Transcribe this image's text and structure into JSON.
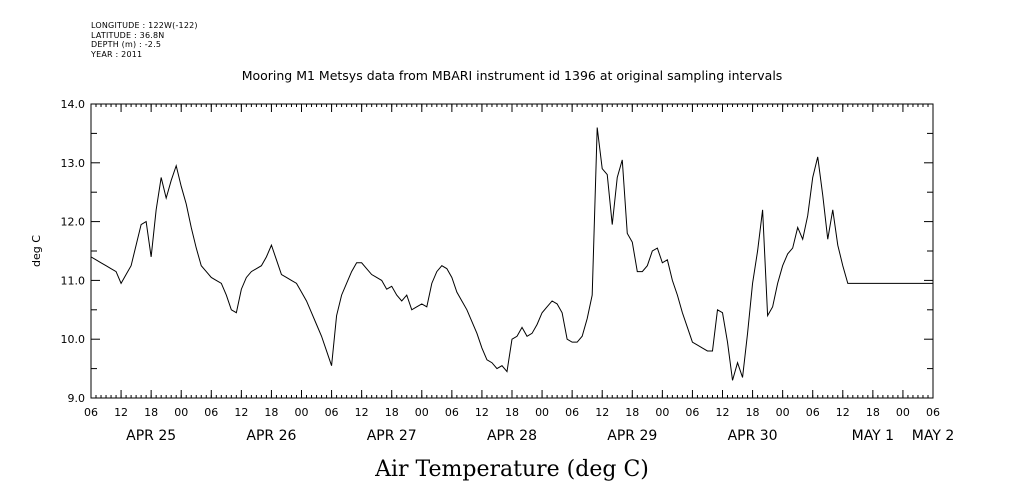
{
  "meta": {
    "longitude": "LONGITUDE : 122W(-122)",
    "latitude": "LATITUDE : 36.8N",
    "depth": "DEPTH (m) : -2.5",
    "year": "YEAR : 2011"
  },
  "chart_data": {
    "type": "line",
    "title": "Mooring M1 Metsys data from MBARI instrument id 1396 at original sampling intervals",
    "xlabel": "Air Temperature (deg C)",
    "ylabel": "deg C",
    "ylim": [
      9.0,
      14.0
    ],
    "yticks": [
      "9.0",
      "10.0",
      "11.0",
      "12.0",
      "13.0",
      "14.0"
    ],
    "xlim_hours": [
      0,
      168
    ],
    "hour_tick_labels": [
      "06",
      "12",
      "18",
      "00",
      "06",
      "12",
      "18",
      "00",
      "06",
      "12",
      "18",
      "00",
      "06",
      "12",
      "18",
      "00",
      "06",
      "12",
      "18",
      "00",
      "06",
      "12",
      "18",
      "00",
      "06",
      "12",
      "18",
      "00",
      "06"
    ],
    "day_labels": [
      {
        "label": "APR 25",
        "hour": 12
      },
      {
        "label": "APR 26",
        "hour": 36
      },
      {
        "label": "APR 27",
        "hour": 60
      },
      {
        "label": "APR 28",
        "hour": 84
      },
      {
        "label": "APR 29",
        "hour": 108
      },
      {
        "label": "APR 30",
        "hour": 132
      },
      {
        "label": "MAY  1",
        "hour": 156
      },
      {
        "label": "MAY  2",
        "hour": 168
      }
    ],
    "x_start": "2011-04-25 06:00",
    "series": [
      {
        "name": "Air Temperature",
        "x_hours": [
          0,
          1,
          2,
          3,
          4,
          5,
          6,
          7,
          8,
          9,
          10,
          11,
          12,
          13,
          14,
          15,
          16,
          17,
          18,
          19,
          20,
          21,
          22,
          23,
          24,
          25,
          26,
          27,
          28,
          29,
          30,
          31,
          32,
          33,
          34,
          35,
          36,
          37,
          38,
          39,
          40,
          41,
          42,
          43,
          44,
          45,
          46,
          47,
          48,
          49,
          50,
          51,
          52,
          53,
          54,
          55,
          56,
          57,
          58,
          59,
          60,
          61,
          62,
          63,
          64,
          65,
          66,
          67,
          68,
          69,
          70,
          71,
          72,
          73,
          74,
          75,
          76,
          77,
          78,
          79,
          80,
          81,
          82,
          83,
          84,
          85,
          86,
          87,
          88,
          89,
          90,
          91,
          92,
          93,
          94,
          95,
          96,
          97,
          98,
          99,
          100,
          101,
          102,
          103,
          104,
          105,
          106,
          107,
          108,
          109,
          110,
          111,
          112,
          113,
          114,
          115,
          116,
          117,
          118,
          119,
          120,
          121,
          122,
          123,
          124,
          125,
          126,
          127,
          128,
          129,
          130,
          131,
          132,
          133,
          134,
          135,
          136,
          137,
          138,
          139,
          140,
          141,
          142,
          143,
          144,
          145,
          146,
          147,
          148,
          149,
          150,
          151,
          152,
          153,
          154,
          155,
          156,
          157,
          158,
          159,
          160,
          161,
          162,
          163,
          164,
          165,
          166,
          167,
          168
        ],
        "values": [
          11.4,
          11.35,
          11.3,
          11.25,
          11.2,
          11.15,
          10.95,
          11.1,
          11.25,
          11.6,
          11.95,
          12.0,
          11.4,
          12.2,
          12.75,
          12.4,
          12.7,
          12.95,
          12.6,
          12.3,
          11.9,
          11.55,
          11.25,
          11.15,
          11.05,
          11.0,
          10.95,
          10.75,
          10.5,
          10.45,
          10.85,
          11.05,
          11.15,
          11.2,
          11.25,
          11.4,
          11.6,
          11.35,
          11.1,
          11.05,
          11.0,
          10.95,
          10.8,
          10.65,
          10.45,
          10.25,
          10.05,
          9.8,
          9.55,
          10.4,
          10.75,
          10.95,
          11.15,
          11.3,
          11.3,
          11.2,
          11.1,
          11.05,
          11.0,
          10.85,
          10.9,
          10.75,
          10.65,
          10.75,
          10.5,
          10.55,
          10.6,
          10.55,
          10.95,
          11.15,
          11.25,
          11.2,
          11.05,
          10.8,
          10.65,
          10.5,
          10.3,
          10.1,
          9.85,
          9.65,
          9.6,
          9.5,
          9.55,
          9.45,
          10.0,
          10.05,
          10.2,
          10.05,
          10.1,
          10.25,
          10.45,
          10.55,
          10.65,
          10.6,
          10.45,
          10.0,
          9.95,
          9.95,
          10.05,
          10.35,
          10.75,
          13.6,
          12.9,
          12.8,
          11.95,
          12.75,
          13.05,
          11.8,
          11.65,
          11.15,
          11.15,
          11.25,
          11.5,
          11.55,
          11.3,
          11.35,
          11.0,
          10.75,
          10.45,
          10.2,
          9.95,
          9.9,
          9.85,
          9.8,
          9.8,
          10.5,
          10.45,
          9.95,
          9.3,
          9.6,
          9.35,
          10.1,
          10.95,
          11.5,
          12.2,
          10.4,
          10.55,
          10.95,
          11.25,
          11.45,
          11.55,
          11.9,
          11.7,
          12.1,
          12.75,
          13.1,
          12.45,
          11.7,
          12.2,
          11.6,
          11.25,
          10.95,
          10.95,
          10.95,
          10.95,
          10.95,
          10.95,
          10.95,
          10.95,
          10.95,
          10.95,
          10.95,
          10.95,
          10.95,
          10.95,
          10.95,
          10.95,
          10.95,
          10.95
        ]
      }
    ]
  }
}
